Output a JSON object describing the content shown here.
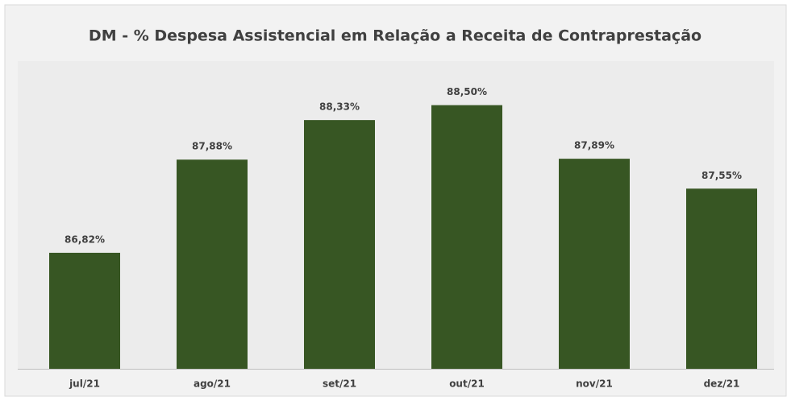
{
  "chart_data": {
    "type": "bar",
    "title": "DM - % Despesa Assistencial em Relação a Receita de Contraprestação",
    "categories": [
      "jul/21",
      "ago/21",
      "set/21",
      "out/21",
      "nov/21",
      "dez/21"
    ],
    "values": [
      86.82,
      87.88,
      88.33,
      88.5,
      87.89,
      87.55
    ],
    "value_labels": [
      "86,82%",
      "87,88%",
      "88,33%",
      "88,50%",
      "87,89%",
      "87,55%"
    ],
    "color": "#375623",
    "ylim": [
      85.5,
      89
    ]
  }
}
